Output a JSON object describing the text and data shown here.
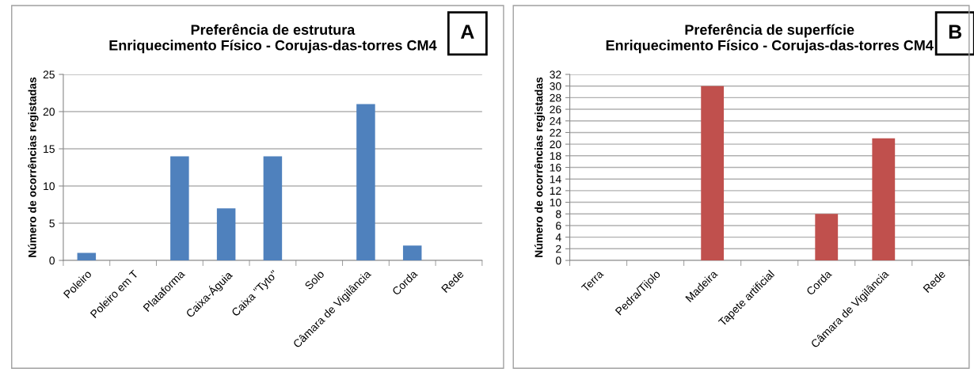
{
  "chart_data": [
    {
      "type": "bar",
      "title": "Preferência de estrutura\nEnriquecimento Físico - Corujas-das-torres CM4",
      "ylabel": "Número de ocorrências registadas",
      "annotations": [
        "A"
      ],
      "categories": [
        "Poleiro",
        "Poleiro em T",
        "Plataforma",
        "Caixa-Águia",
        "Caixa \"Tyto\"",
        "Solo",
        "Câmara de Vigilância",
        "Corda",
        "Rede"
      ],
      "values": [
        1,
        0,
        14,
        7,
        14,
        0,
        21,
        2,
        0
      ],
      "color": "#4f81bd",
      "ylim": [
        0,
        25
      ],
      "yticks": [
        0,
        5,
        10,
        15,
        20,
        25
      ],
      "grid": "y",
      "legend": false
    },
    {
      "type": "bar",
      "title": "Preferência de superfície\nEnriquecimento Físico - Corujas-das-torres CM4",
      "ylabel": "Número de ocorrências registadas",
      "annotations": [
        "B"
      ],
      "categories": [
        "Terra",
        "Pedra/Tijolo",
        "Madeira",
        "Tapete artificial",
        "Corda",
        "Câmara de Vigilância",
        "Rede"
      ],
      "values": [
        0,
        0,
        30,
        0,
        8,
        21,
        0
      ],
      "color": "#c0504d",
      "ylim": [
        0,
        32
      ],
      "yticks": [
        0,
        2,
        4,
        6,
        8,
        10,
        12,
        14,
        16,
        18,
        20,
        22,
        24,
        26,
        28,
        30,
        32
      ],
      "grid": "y",
      "legend": false
    }
  ]
}
